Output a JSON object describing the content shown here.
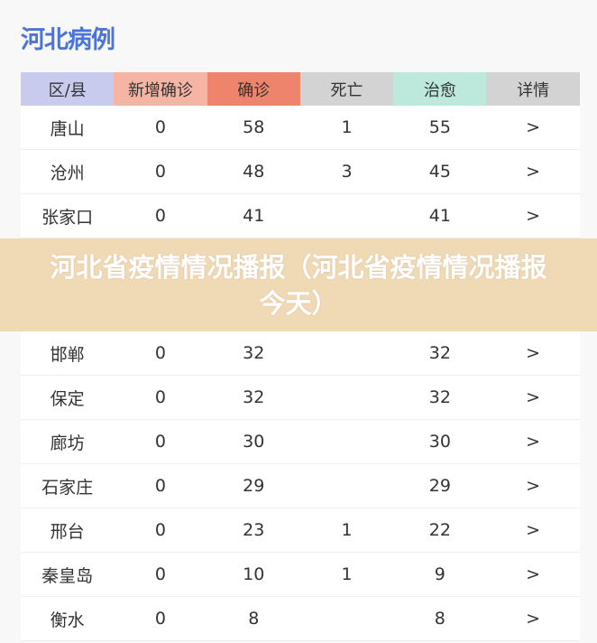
{
  "title": "河北病例",
  "headers": [
    {
      "label": "区/县",
      "color": "#c9cbee"
    },
    {
      "label": "新增确诊",
      "color": "#f6b4a5"
    },
    {
      "label": "确诊",
      "color": "#ef846c"
    },
    {
      "label": "死亡",
      "color": "#d3d3d3"
    },
    {
      "label": "治愈",
      "color": "#bde9dc"
    },
    {
      "label": "详情",
      "color": "#d3d3d3"
    }
  ],
  "rows": [
    [
      "唐山",
      "0",
      "58",
      "1",
      "55",
      ">"
    ],
    [
      "沧州",
      "0",
      "48",
      "3",
      "45",
      ">"
    ],
    [
      "张家口",
      "0",
      "41",
      "",
      "41",
      ">"
    ],
    [
      "邯郸",
      "0",
      "32",
      "",
      "32",
      ">"
    ],
    [
      "保定",
      "0",
      "32",
      "",
      "32",
      ">"
    ],
    [
      "廊坊",
      "0",
      "30",
      "",
      "30",
      ">"
    ],
    [
      "石家庄",
      "0",
      "29",
      "",
      "29",
      ">"
    ],
    [
      "邢台",
      "0",
      "23",
      "1",
      "22",
      ">"
    ],
    [
      "秦皇岛",
      "0",
      "10",
      "1",
      "9",
      ">"
    ],
    [
      "衡水",
      "0",
      "8",
      "",
      "8",
      ">"
    ]
  ],
  "overlay_text": "河北省疫情情况播报（河北省疫情情况播报今天）"
}
